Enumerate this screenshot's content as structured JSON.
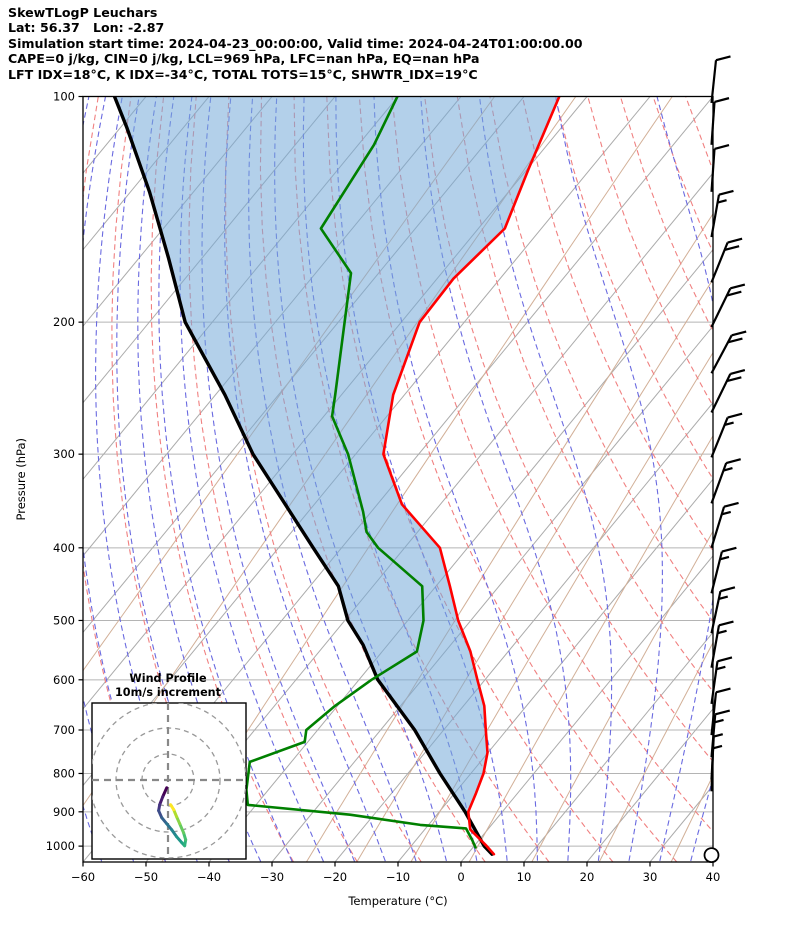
{
  "header": {
    "line1": "SkewTLogP Leuchars",
    "line2": "Lat: 56.37   Lon: -2.87",
    "line3": "Simulation start time: 2024-04-23_00:00:00, Valid time: 2024-04-24T01:00:00.00",
    "line4": "CAPE=0 j/kg, CIN=0 j/kg, LCL=969 hPa, LFC=nan hPa, EQ=nan hPa",
    "line5": "LFT IDX=18°C, K IDX=-34°C, TOTAL TOTS=15°C, SHWTR_IDX=19°C"
  },
  "axes": {
    "x_label": "Temperature (°C)",
    "y_label": "Pressure (hPa)",
    "x_ticks": [
      -60,
      -50,
      -40,
      -30,
      -20,
      -10,
      0,
      10,
      20,
      30,
      40
    ],
    "y_ticks": [
      100,
      200,
      300,
      400,
      500,
      600,
      700,
      800,
      900,
      1000
    ],
    "x_range": [
      -60,
      40
    ],
    "p_top": 100,
    "p_bottom": 1050
  },
  "chart_data": {
    "type": "skewt_logp",
    "station": "Leuchars",
    "title": "SkewTLogP Leuchars",
    "temperature_C_by_hPa": [
      [
        1025,
        4.2
      ],
      [
        1000,
        2.0
      ],
      [
        950,
        -2.8
      ],
      [
        900,
        -5.4
      ],
      [
        850,
        -6.6
      ],
      [
        800,
        -8.0
      ],
      [
        750,
        -10.1
      ],
      [
        700,
        -13.3
      ],
      [
        650,
        -16.7
      ],
      [
        600,
        -21.2
      ],
      [
        550,
        -26.0
      ],
      [
        500,
        -32.0
      ],
      [
        450,
        -37.8
      ],
      [
        400,
        -44.4
      ],
      [
        350,
        -56.1
      ],
      [
        300,
        -65.6
      ],
      [
        250,
        -71.8
      ],
      [
        200,
        -77.1
      ],
      [
        175,
        -77.4
      ],
      [
        150,
        -75.8
      ],
      [
        125,
        -79.8
      ],
      [
        100,
        -84.4
      ]
    ],
    "dewpoint_C_by_hPa": [
      [
        1004,
        0.4
      ],
      [
        983,
        -1.0
      ],
      [
        947,
        -3.6
      ],
      [
        937,
        -11.3
      ],
      [
        908,
        -23.8
      ],
      [
        881,
        -41.3
      ],
      [
        841,
        -43.5
      ],
      [
        772,
        -46.6
      ],
      [
        726,
        -40.5
      ],
      [
        700,
        -41.8
      ],
      [
        650,
        -40.4
      ],
      [
        600,
        -38.0
      ],
      [
        550,
        -34.5
      ],
      [
        500,
        -37.5
      ],
      [
        450,
        -42.2
      ],
      [
        400,
        -54.2
      ],
      [
        381,
        -58.1
      ],
      [
        358,
        -61.3
      ],
      [
        300,
        -71.2
      ],
      [
        267,
        -78.7
      ],
      [
        250,
        -81.0
      ],
      [
        200,
        -89.0
      ],
      [
        172,
        -94.4
      ],
      [
        150,
        -105.0
      ],
      [
        116,
        -107.5
      ],
      [
        100,
        -110.1
      ]
    ],
    "parcel_C_by_hPa": [
      [
        1025,
        3.9
      ],
      [
        1000,
        1.6
      ],
      [
        900,
        -5.9
      ],
      [
        800,
        -14.9
      ],
      [
        700,
        -24.6
      ],
      [
        600,
        -37.0
      ],
      [
        539,
        -43.9
      ],
      [
        500,
        -49.5
      ],
      [
        450,
        -55.5
      ],
      [
        400,
        -64.5
      ],
      [
        300,
        -86.3
      ],
      [
        250,
        -98.5
      ],
      [
        200,
        -114.3
      ],
      [
        164,
        -125.4
      ],
      [
        134,
        -137.0
      ],
      [
        110,
        -149.0
      ],
      [
        100,
        -155.0
      ]
    ],
    "background": {
      "isotherms_C": {
        "start": -160,
        "end": 40,
        "step": 10
      },
      "dry_adiabats_C": {
        "start": -50,
        "end": 140,
        "step": 10
      },
      "moist_adiabats_C": {
        "start": -60,
        "end": 45,
        "step": 5
      },
      "mixing_ratio_g_kg": [
        0.0005,
        0.005,
        0.05,
        0.5,
        1,
        2,
        4,
        8,
        16,
        32
      ]
    },
    "colors": {
      "temperature": "#ff0000",
      "dewpoint": "#008000",
      "parcel": "#000000",
      "shade": "#74a9d8",
      "isotherm": "#ababab",
      "mixing_ratio": "#d2b098",
      "dry_adiabat": "#f08080",
      "moist_adiabat": "#6a6ae0",
      "grid": "#b4b4b4",
      "barbs": "#000000"
    },
    "wind_barbs": [
      {
        "p": 102,
        "feathers": [
          10
        ],
        "tilt": 6
      },
      {
        "p": 116,
        "feathers": [
          10
        ],
        "tilt": 4
      },
      {
        "p": 134,
        "feathers": [
          10
        ],
        "tilt": 4
      },
      {
        "p": 154,
        "feathers": [
          10,
          5
        ],
        "tilt": 10
      },
      {
        "p": 177,
        "feathers": [
          10,
          10
        ],
        "tilt": 22
      },
      {
        "p": 203,
        "feathers": [
          10,
          10
        ],
        "tilt": 26
      },
      {
        "p": 234,
        "feathers": [
          10,
          10
        ],
        "tilt": 28
      },
      {
        "p": 264,
        "feathers": [
          10,
          10
        ],
        "tilt": 26
      },
      {
        "p": 303,
        "feathers": [
          10,
          5
        ],
        "tilt": 22
      },
      {
        "p": 349,
        "feathers": [
          10,
          5
        ],
        "tilt": 20
      },
      {
        "p": 400,
        "feathers": [
          10,
          5
        ],
        "tilt": 17
      },
      {
        "p": 460,
        "feathers": [
          10,
          5
        ],
        "tilt": 14
      },
      {
        "p": 520,
        "feathers": [
          10,
          5
        ],
        "tilt": 12
      },
      {
        "p": 578,
        "feathers": [
          10,
          5
        ],
        "tilt": 10
      },
      {
        "p": 646,
        "feathers": [
          10,
          5
        ],
        "tilt": 8
      },
      {
        "p": 711,
        "feathers": [
          10
        ],
        "tilt": 6
      },
      {
        "p": 761,
        "feathers": [
          10,
          5
        ],
        "tilt": 5
      },
      {
        "p": 815,
        "feathers": [
          5
        ],
        "tilt": 3
      },
      {
        "p": 845,
        "feathers": [
          5
        ],
        "tilt": 2
      }
    ],
    "surface_marker": {
      "symbol": "circle",
      "p": 1028
    },
    "hodograph": {
      "title_line1": "Wind Profile",
      "title_line2": "10m/s increment",
      "ring_interval_ms": 10,
      "rings_ms": [
        10,
        20,
        30
      ],
      "trace_uv_ms": [
        [
          -0.5,
          -3.0
        ],
        [
          -2.0,
          -6.4
        ],
        [
          -3.2,
          -9.5
        ],
        [
          -3.6,
          -11.8
        ],
        [
          -2.4,
          -14.5
        ],
        [
          -0.5,
          -16.8
        ],
        [
          1.4,
          -19.1
        ],
        [
          3.3,
          -21.8
        ],
        [
          5.3,
          -24.1
        ],
        [
          6.4,
          -25.3
        ],
        [
          6.8,
          -23.0
        ],
        [
          6.0,
          -20.3
        ],
        [
          4.5,
          -16.8
        ],
        [
          3.3,
          -14.1
        ],
        [
          2.2,
          -11.4
        ],
        [
          1.0,
          -9.5
        ]
      ],
      "trace_colors": [
        "#440154",
        "#481c6e",
        "#453581",
        "#3d4d8a",
        "#34618d",
        "#2b748e",
        "#24868e",
        "#1f978b",
        "#21a585",
        "#2eb37c",
        "#46c06f",
        "#65cb5e",
        "#89d548",
        "#b0dd2f",
        "#fde725"
      ]
    }
  }
}
